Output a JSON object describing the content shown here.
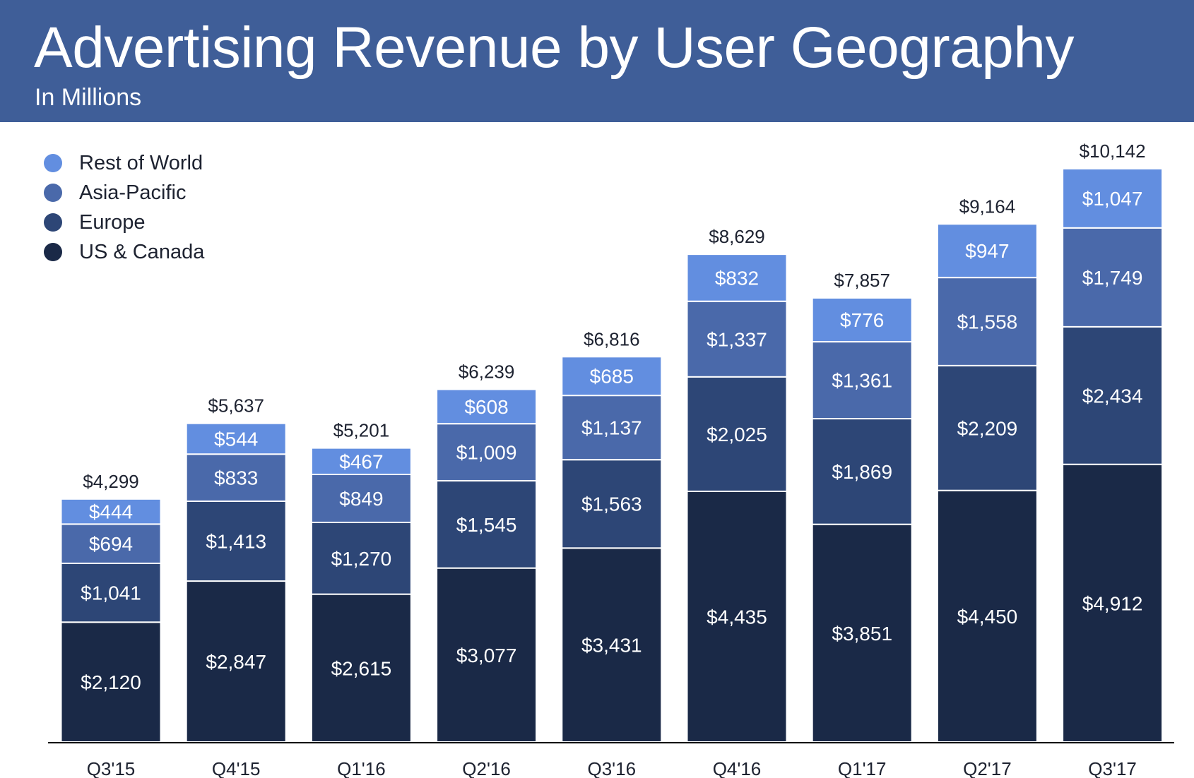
{
  "header": {
    "title": "Advertising Revenue by User Geography",
    "subtitle": "In Millions"
  },
  "colors": {
    "header_bg": "#3f5e98",
    "rest_of_world": "#628ee0",
    "asia_pacific": "#4a69aa",
    "europe": "#2d4676",
    "us_canada": "#1a2947",
    "axis": "#000000"
  },
  "chart_data": {
    "type": "bar",
    "stacked": true,
    "title": "Advertising Revenue by User Geography",
    "subtitle": "In Millions",
    "xlabel": "",
    "ylabel": "",
    "ylim": [
      0,
      10142
    ],
    "grid": false,
    "legend_position": "top-left",
    "categories": [
      "Q3'15",
      "Q4'15",
      "Q1'16",
      "Q2'16",
      "Q3'16",
      "Q4'16",
      "Q1'17",
      "Q2'17",
      "Q3'17"
    ],
    "series": [
      {
        "name": "US & Canada",
        "color": "#1a2947",
        "values": [
          2120,
          2847,
          2615,
          3077,
          3431,
          4435,
          3851,
          4450,
          4912
        ],
        "labels": [
          "$2,120",
          "$2,847",
          "$2,615",
          "$3,077",
          "$3,431",
          "$4,435",
          "$3,851",
          "$4,450",
          "$4,912"
        ]
      },
      {
        "name": "Europe",
        "color": "#2d4676",
        "values": [
          1041,
          1413,
          1270,
          1545,
          1563,
          2025,
          1869,
          2209,
          2434
        ],
        "labels": [
          "$1,041",
          "$1,413",
          "$1,270",
          "$1,545",
          "$1,563",
          "$2,025",
          "$1,869",
          "$2,209",
          "$2,434"
        ]
      },
      {
        "name": "Asia-Pacific",
        "color": "#4a69aa",
        "values": [
          694,
          833,
          849,
          1009,
          1137,
          1337,
          1361,
          1558,
          1749
        ],
        "labels": [
          "$694",
          "$833",
          "$849",
          "$1,009",
          "$1,137",
          "$1,337",
          "$1,361",
          "$1,558",
          "$1,749"
        ]
      },
      {
        "name": "Rest of World",
        "color": "#628ee0",
        "values": [
          444,
          544,
          467,
          608,
          685,
          832,
          776,
          947,
          1047
        ],
        "labels": [
          "$444",
          "$544",
          "$467",
          "$608",
          "$685",
          "$832",
          "$776",
          "$947",
          "$1,047"
        ]
      }
    ],
    "totals": [
      4299,
      5637,
      5201,
      6239,
      6816,
      8629,
      7857,
      9164,
      10142
    ],
    "total_labels": [
      "$4,299",
      "$5,637",
      "$5,201",
      "$6,239",
      "$6,816",
      "$8,629",
      "$7,857",
      "$9,164",
      "$10,142"
    ],
    "legend_order": [
      "Rest of World",
      "Asia-Pacific",
      "Europe",
      "US & Canada"
    ]
  }
}
